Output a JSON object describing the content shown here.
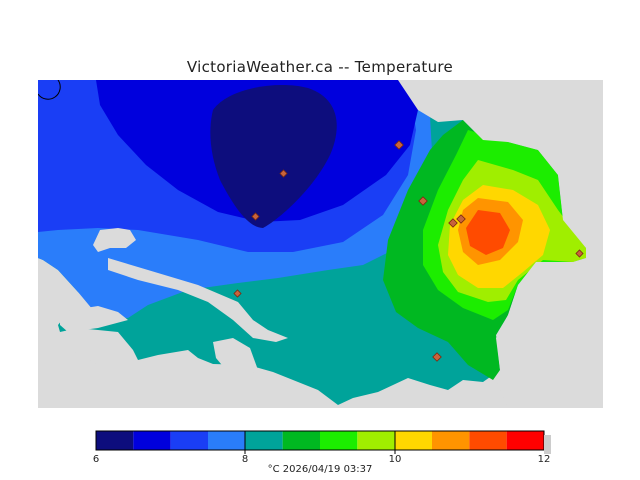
{
  "title": "VictoriaWeather.ca -- Temperature",
  "caption": "°C  2026/04/19 03:37",
  "colorbar": {
    "min": 6,
    "max": 12,
    "tick_labels": [
      "6",
      "8",
      "10",
      "12"
    ],
    "bins": [
      {
        "from": 6.0,
        "to": 6.5,
        "color": "#0d0d7d"
      },
      {
        "from": 6.5,
        "to": 7.0,
        "color": "#0000dd"
      },
      {
        "from": 7.0,
        "to": 7.5,
        "color": "#1a3ef5"
      },
      {
        "from": 7.5,
        "to": 8.0,
        "color": "#2a7dfa"
      },
      {
        "from": 8.0,
        "to": 8.5,
        "color": "#00a39a"
      },
      {
        "from": 8.5,
        "to": 9.0,
        "color": "#00b821"
      },
      {
        "from": 9.0,
        "to": 9.5,
        "color": "#1ced00"
      },
      {
        "from": 9.5,
        "to": 10.0,
        "color": "#a0ee00"
      },
      {
        "from": 10.0,
        "to": 10.5,
        "color": "#ffd700"
      },
      {
        "from": 10.5,
        "to": 11.0,
        "color": "#ff9400"
      },
      {
        "from": 11.0,
        "to": 11.5,
        "color": "#ff4b00"
      },
      {
        "from": 11.5,
        "to": 12.0,
        "color": "#ff0000"
      }
    ]
  },
  "colors": {
    "water": "#dbdbdb",
    "station_marker": "#c8643c"
  }
}
